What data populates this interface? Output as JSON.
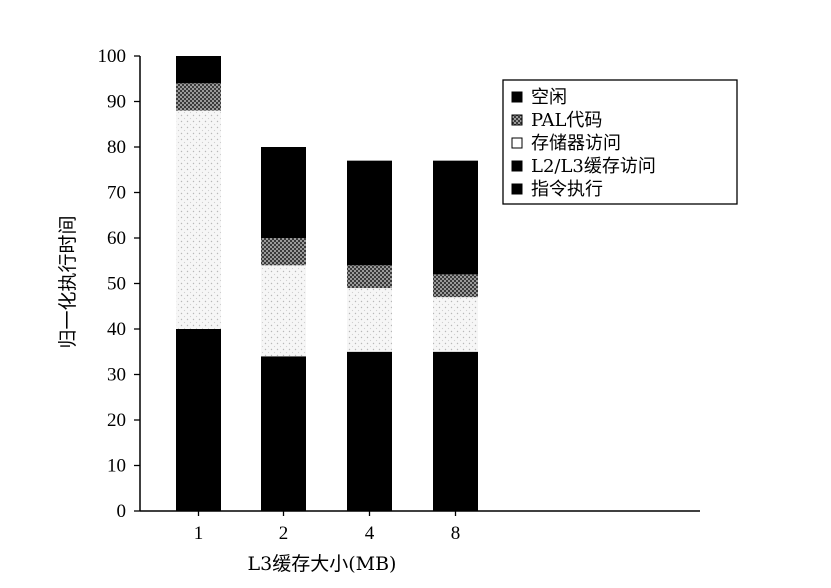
{
  "chart_data": {
    "type": "bar",
    "stacked": true,
    "title": "",
    "xlabel": "L3缓存大小(MB)",
    "ylabel": "归一化执行时间",
    "ylim": [
      0,
      100
    ],
    "yticks": [
      0,
      10,
      20,
      30,
      40,
      50,
      60,
      70,
      80,
      90,
      100
    ],
    "categories": [
      "1",
      "2",
      "4",
      "8"
    ],
    "legend_position": "top-right",
    "grid": false,
    "series": [
      {
        "name": "指令执行",
        "values": [
          40,
          34,
          35,
          35
        ],
        "color": "#000000",
        "pattern": "solid"
      },
      {
        "name": "L2/L3缓存访问",
        "values": [
          0,
          0,
          0,
          0
        ],
        "color": "#000000",
        "pattern": "solid"
      },
      {
        "name": "存储器访问",
        "values": [
          48,
          20,
          14,
          12
        ],
        "color": "#f4f4f4",
        "pattern": "dots"
      },
      {
        "name": "PAL代码",
        "values": [
          6,
          6,
          5,
          5
        ],
        "color": "#555555",
        "pattern": "checker"
      },
      {
        "name": "空闲",
        "values": [
          6,
          20,
          23,
          25
        ],
        "color": "#000000",
        "pattern": "solid"
      }
    ],
    "legend_order": [
      "空闲",
      "PAL代码",
      "存储器访问",
      "L2/L3缓存访问",
      "指令执行"
    ]
  }
}
